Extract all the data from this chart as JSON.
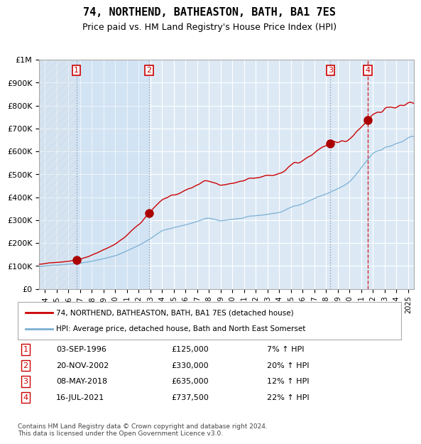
{
  "title1": "74, NORTHEND, BATHEASTON, BATH, BA1 7ES",
  "title2": "Price paid vs. HM Land Registry's House Price Index (HPI)",
  "ylabel": "",
  "background_color": "#ffffff",
  "plot_bg_color": "#dce9f5",
  "grid_color": "#ffffff",
  "hatch_color": "#c0d0e0",
  "red_line_color": "#cc0000",
  "blue_line_color": "#7bafd4",
  "sale_marker_color": "#aa0000",
  "vline_dashed_color": "#cc0000",
  "vline_solid_color": "#8899bb",
  "box_color": "#cc0000",
  "sales": [
    {
      "label": "1",
      "date_x": 1996.67,
      "price": 125000,
      "date_str": "03-SEP-1996",
      "pct": "7%",
      "vline_style": "dashed"
    },
    {
      "label": "2",
      "date_x": 2002.89,
      "price": 330000,
      "date_str": "20-NOV-2002",
      "pct": "20%",
      "vline_style": "dashed"
    },
    {
      "label": "3",
      "date_x": 2018.35,
      "price": 635000,
      "date_str": "08-MAY-2018",
      "pct": "12%",
      "vline_style": "dashed"
    },
    {
      "label": "4",
      "date_x": 2021.54,
      "price": 737500,
      "date_str": "16-JUL-2021",
      "pct": "22%",
      "vline_style": "dashed"
    }
  ],
  "ylim": [
    0,
    1000000
  ],
  "xlim": [
    1993.5,
    2025.5
  ],
  "yticks": [
    0,
    100000,
    200000,
    300000,
    400000,
    500000,
    600000,
    700000,
    800000,
    900000,
    1000000
  ],
  "ytick_labels": [
    "£0",
    "£100K",
    "£200K",
    "£300K",
    "£400K",
    "£500K",
    "£600K",
    "£700K",
    "£800K",
    "£900K",
    "£1M"
  ],
  "xticks": [
    1994,
    1995,
    1996,
    1997,
    1998,
    1999,
    2000,
    2001,
    2002,
    2003,
    2004,
    2005,
    2006,
    2007,
    2008,
    2009,
    2010,
    2011,
    2012,
    2013,
    2014,
    2015,
    2016,
    2017,
    2018,
    2019,
    2020,
    2021,
    2022,
    2023,
    2024,
    2025
  ],
  "legend_red": "74, NORTHEND, BATHEASTON, BATH, BA1 7ES (detached house)",
  "legend_blue": "HPI: Average price, detached house, Bath and North East Somerset",
  "footer": "Contains HM Land Registry data © Crown copyright and database right 2024.\nThis data is licensed under the Open Government Licence v3.0.",
  "table": [
    [
      "1",
      "03-SEP-1996",
      "£125,000",
      "7% ↑ HPI"
    ],
    [
      "2",
      "20-NOV-2002",
      "£330,000",
      "20% ↑ HPI"
    ],
    [
      "3",
      "08-MAY-2018",
      "£635,000",
      "12% ↑ HPI"
    ],
    [
      "4",
      "16-JUL-2021",
      "£737,500",
      "22% ↑ HPI"
    ]
  ]
}
